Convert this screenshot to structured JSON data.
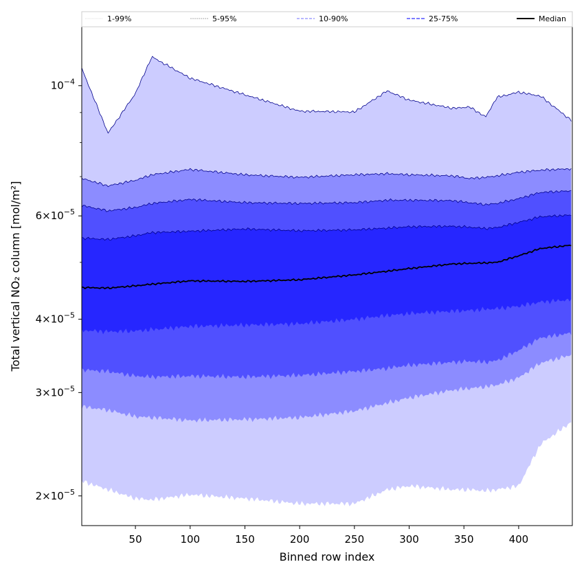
{
  "chart_data": {
    "type": "area",
    "xlabel": "Binned row index",
    "ylabel": "Total vertical NO₂ column [mol/m²]",
    "yscale": "log",
    "xlim": [
      1,
      449
    ],
    "ylim": [
      1.78e-05,
      0.000126
    ],
    "xticks": [
      50,
      100,
      150,
      200,
      250,
      300,
      350,
      400
    ],
    "xtick_labels": [
      "50",
      "100",
      "150",
      "200",
      "250",
      "300",
      "350",
      "400"
    ],
    "yticks": [
      {
        "value": 2e-05,
        "mantissa": "2",
        "exponent": "−5"
      },
      {
        "value": 3e-05,
        "mantissa": "3",
        "exponent": "−5"
      },
      {
        "value": 4e-05,
        "mantissa": "4",
        "exponent": "−5"
      },
      {
        "value": 6e-05,
        "mantissa": "6",
        "exponent": "−5"
      },
      {
        "value": 0.0001,
        "mantissa": "10",
        "exponent": "−4"
      }
    ],
    "legend_position": "top",
    "x": [
      1,
      25,
      50,
      65,
      100,
      150,
      200,
      250,
      280,
      300,
      340,
      355,
      370,
      380,
      400,
      420,
      449
    ],
    "series": [
      {
        "name": "1-99%",
        "lower": [
          2.12e-05,
          2.05e-05,
          1.98e-05,
          1.97e-05,
          2.01e-05,
          1.98e-05,
          1.94e-05,
          1.94e-05,
          2.05e-05,
          2.08e-05,
          2.05e-05,
          2.05e-05,
          2.04e-05,
          2.05e-05,
          2.08e-05,
          2.45e-05,
          2.68e-05
        ],
        "upper": [
          0.000107,
          8.3e-05,
          9.7e-05,
          0.000112,
          0.000103,
          9.65e-05,
          9.05e-05,
          9.02e-05,
          9.8e-05,
          9.45e-05,
          9.15e-05,
          9.2e-05,
          8.85e-05,
          9.55e-05,
          9.75e-05,
          9.6e-05,
          8.7e-05
        ]
      },
      {
        "name": "5-95%",
        "lower": [
          2.84e-05,
          2.8e-05,
          2.73e-05,
          2.72e-05,
          2.69e-05,
          2.7e-05,
          2.72e-05,
          2.79e-05,
          2.88e-05,
          2.94e-05,
          3.03e-05,
          3.05e-05,
          3.07e-05,
          3.09e-05,
          3.18e-05,
          3.37e-05,
          3.48e-05
        ],
        "upper": [
          6.95e-05,
          6.75e-05,
          6.9e-05,
          7.05e-05,
          7.2e-05,
          7.05e-05,
          6.98e-05,
          7.05e-05,
          7.08e-05,
          7.05e-05,
          7.02e-05,
          6.95e-05,
          6.98e-05,
          7.02e-05,
          7.12e-05,
          7.18e-05,
          7.22e-05
        ]
      },
      {
        "name": "10-90%",
        "lower": [
          3.28e-05,
          3.26e-05,
          3.2e-05,
          3.19e-05,
          3.2e-05,
          3.19e-05,
          3.21e-05,
          3.26e-05,
          3.3e-05,
          3.34e-05,
          3.38e-05,
          3.39e-05,
          3.38e-05,
          3.4e-05,
          3.54e-05,
          3.72e-05,
          3.79e-05
        ],
        "upper": [
          6.25e-05,
          6.12e-05,
          6.2e-05,
          6.3e-05,
          6.4e-05,
          6.32e-05,
          6.3e-05,
          6.32e-05,
          6.38e-05,
          6.38e-05,
          6.37e-05,
          6.32e-05,
          6.27e-05,
          6.3e-05,
          6.42e-05,
          6.58e-05,
          6.62e-05
        ]
      },
      {
        "name": "25-75%",
        "lower": [
          3.83e-05,
          3.81e-05,
          3.82e-05,
          3.84e-05,
          3.89e-05,
          3.91e-05,
          3.93e-05,
          4e-05,
          4.06e-05,
          4.09e-05,
          4.13e-05,
          4.14e-05,
          4.16e-05,
          4.17e-05,
          4.21e-05,
          4.28e-05,
          4.32e-05
        ],
        "upper": [
          5.5e-05,
          5.47e-05,
          5.55e-05,
          5.62e-05,
          5.65e-05,
          5.7e-05,
          5.66e-05,
          5.68e-05,
          5.72e-05,
          5.75e-05,
          5.76e-05,
          5.74e-05,
          5.71e-05,
          5.73e-05,
          5.85e-05,
          5.98e-05,
          6.02e-05
        ]
      },
      {
        "name": "Median",
        "values": [
          4.53e-05,
          4.52e-05,
          4.56e-05,
          4.59e-05,
          4.65e-05,
          4.64e-05,
          4.67e-05,
          4.76e-05,
          4.83e-05,
          4.88e-05,
          4.97e-05,
          4.98e-05,
          4.99e-05,
          5e-05,
          5.13e-05,
          5.28e-05,
          5.35e-05
        ]
      }
    ],
    "colors": {
      "1-99%": "#ccccff",
      "5-95%": "#8c8cff",
      "10-90%": "#5050ff",
      "25-75%": "#2626ff",
      "Median": "#000000",
      "envelope_line": "#00008b"
    }
  }
}
